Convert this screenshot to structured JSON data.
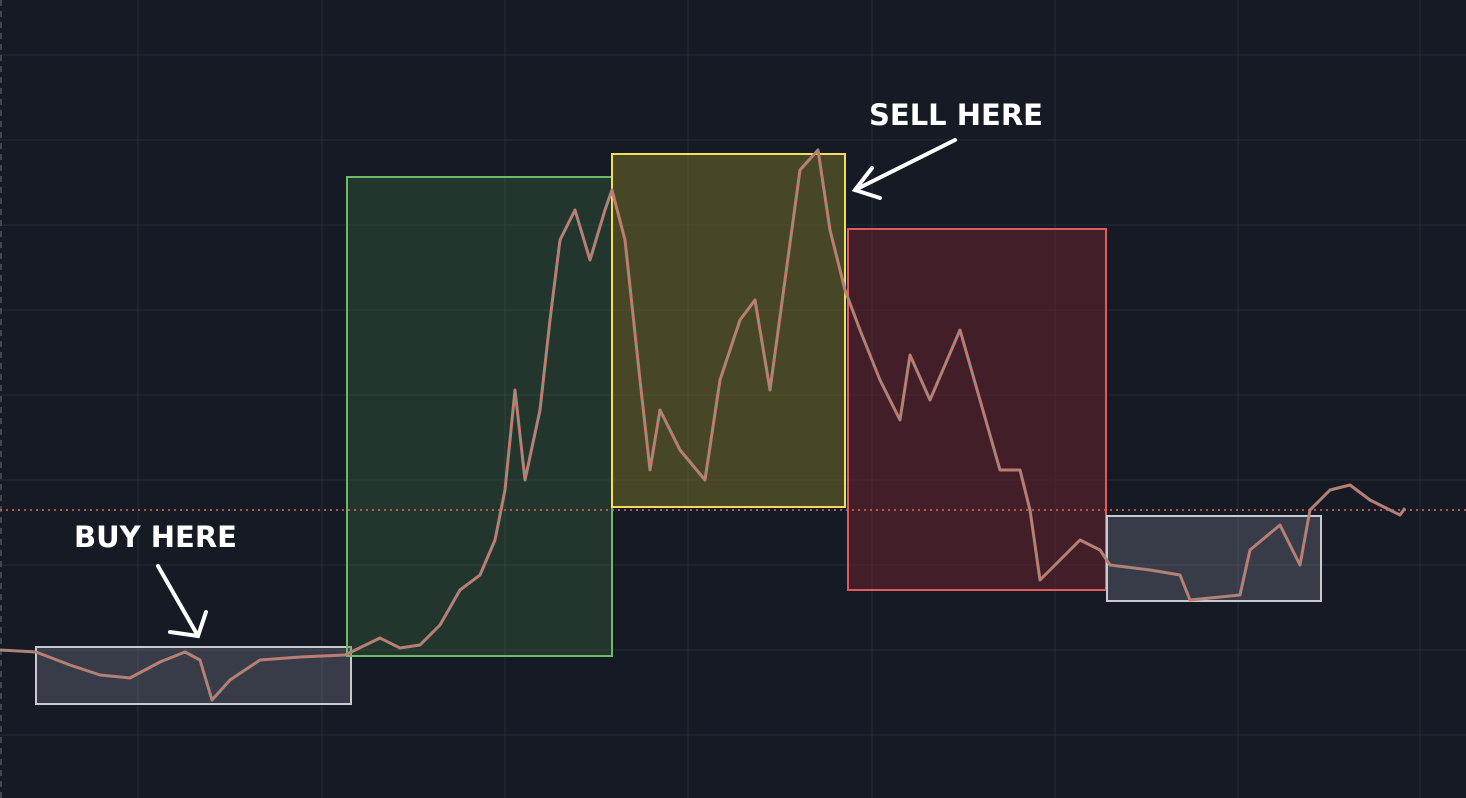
{
  "annotations": {
    "sell": "SELL HERE",
    "buy": "BUY HERE"
  }
}
